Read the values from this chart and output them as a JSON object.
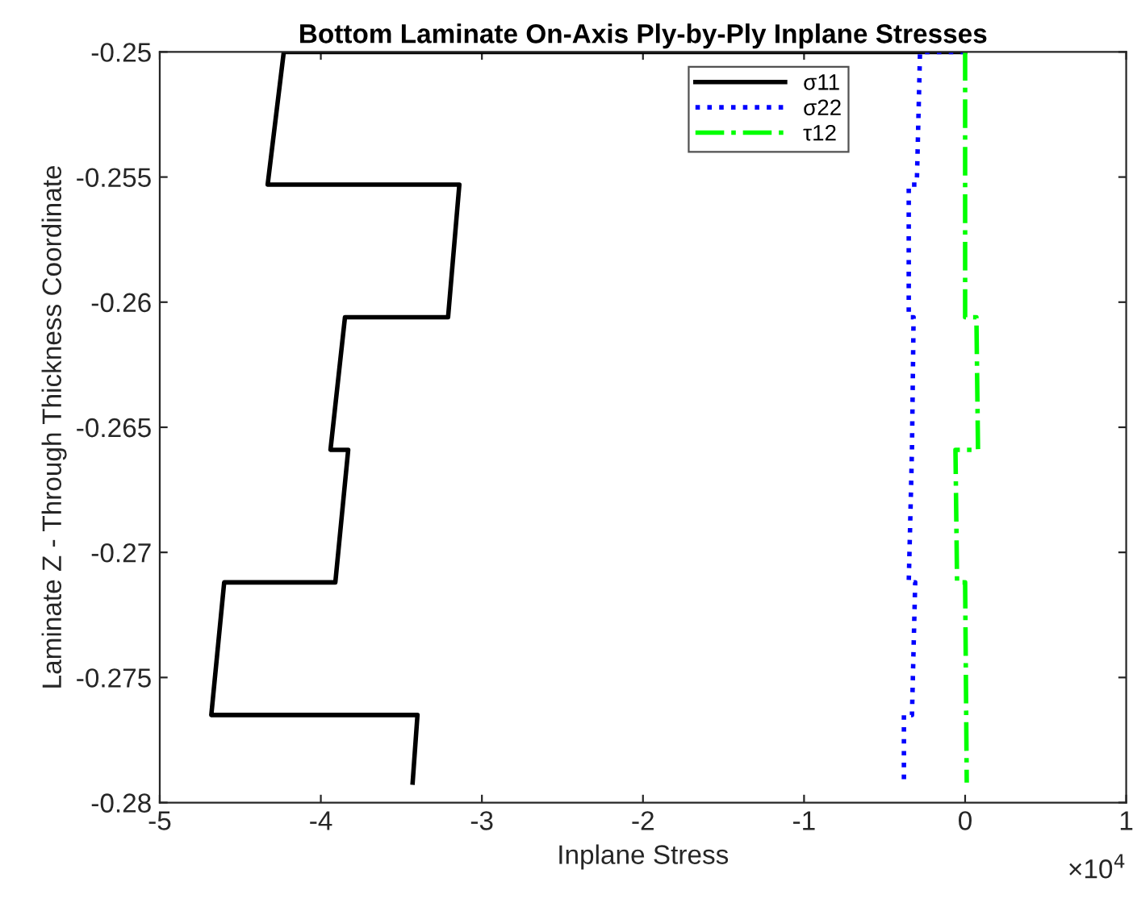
{
  "chart_data": {
    "type": "line",
    "title": "Bottom Laminate On-Axis Ply-by-Ply Inplane Stresses",
    "xlabel": "Inplane Stress",
    "ylabel": "Laminate Z - Through Thickness Coordinate",
    "annotations": [
      "×10$^{4}$"
    ],
    "series": [
      {
        "name": "σ11",
        "color": "#000000",
        "line_style": "solid",
        "x": [
          0,
          -4.23,
          -4.33,
          -3.14,
          -3.21,
          -3.85,
          -3.94,
          -3.83,
          -3.91,
          -4.6,
          -4.68,
          -3.4,
          -3.43
        ],
        "values": [
          -0.25,
          -0.25,
          -0.2553,
          -0.2553,
          -0.2606,
          -0.2606,
          -0.2659,
          -0.2659,
          -0.2712,
          -0.2712,
          -0.2765,
          -0.2765,
          -0.2792
        ]
      },
      {
        "name": "σ22",
        "color": "#0000ff",
        "line_style": "dotted",
        "x": [
          0,
          -0.28,
          -0.3,
          -0.35,
          -0.35,
          -0.32,
          -0.33,
          -0.35,
          -0.31,
          -0.33,
          -0.38,
          -0.38
        ],
        "values": [
          -0.25,
          -0.25,
          -0.2553,
          -0.2553,
          -0.2606,
          -0.2606,
          -0.2659,
          -0.2712,
          -0.2712,
          -0.2765,
          -0.2765,
          -0.2792
        ]
      },
      {
        "name": "τ12",
        "color": "#00ff00",
        "line_style": "dashdot",
        "x": [
          0,
          0.0,
          0.0,
          0.07,
          0.08,
          -0.06,
          -0.05,
          0.0,
          0.01
        ],
        "values": [
          -0.25,
          -0.2553,
          -0.2606,
          -0.2606,
          -0.2659,
          -0.2659,
          -0.2712,
          -0.2712,
          -0.2792
        ]
      }
    ],
    "xlim": [
      -5,
      1
    ],
    "xticks": [
      -5,
      -4,
      -3,
      -2,
      -1,
      0,
      1
    ],
    "ylim": [
      -0.28,
      -0.25
    ],
    "yticks": [
      -0.28,
      -0.275,
      -0.27,
      -0.265,
      -0.26,
      -0.255,
      -0.25
    ],
    "grid": false,
    "legend": "top",
    "marker": "none"
  }
}
